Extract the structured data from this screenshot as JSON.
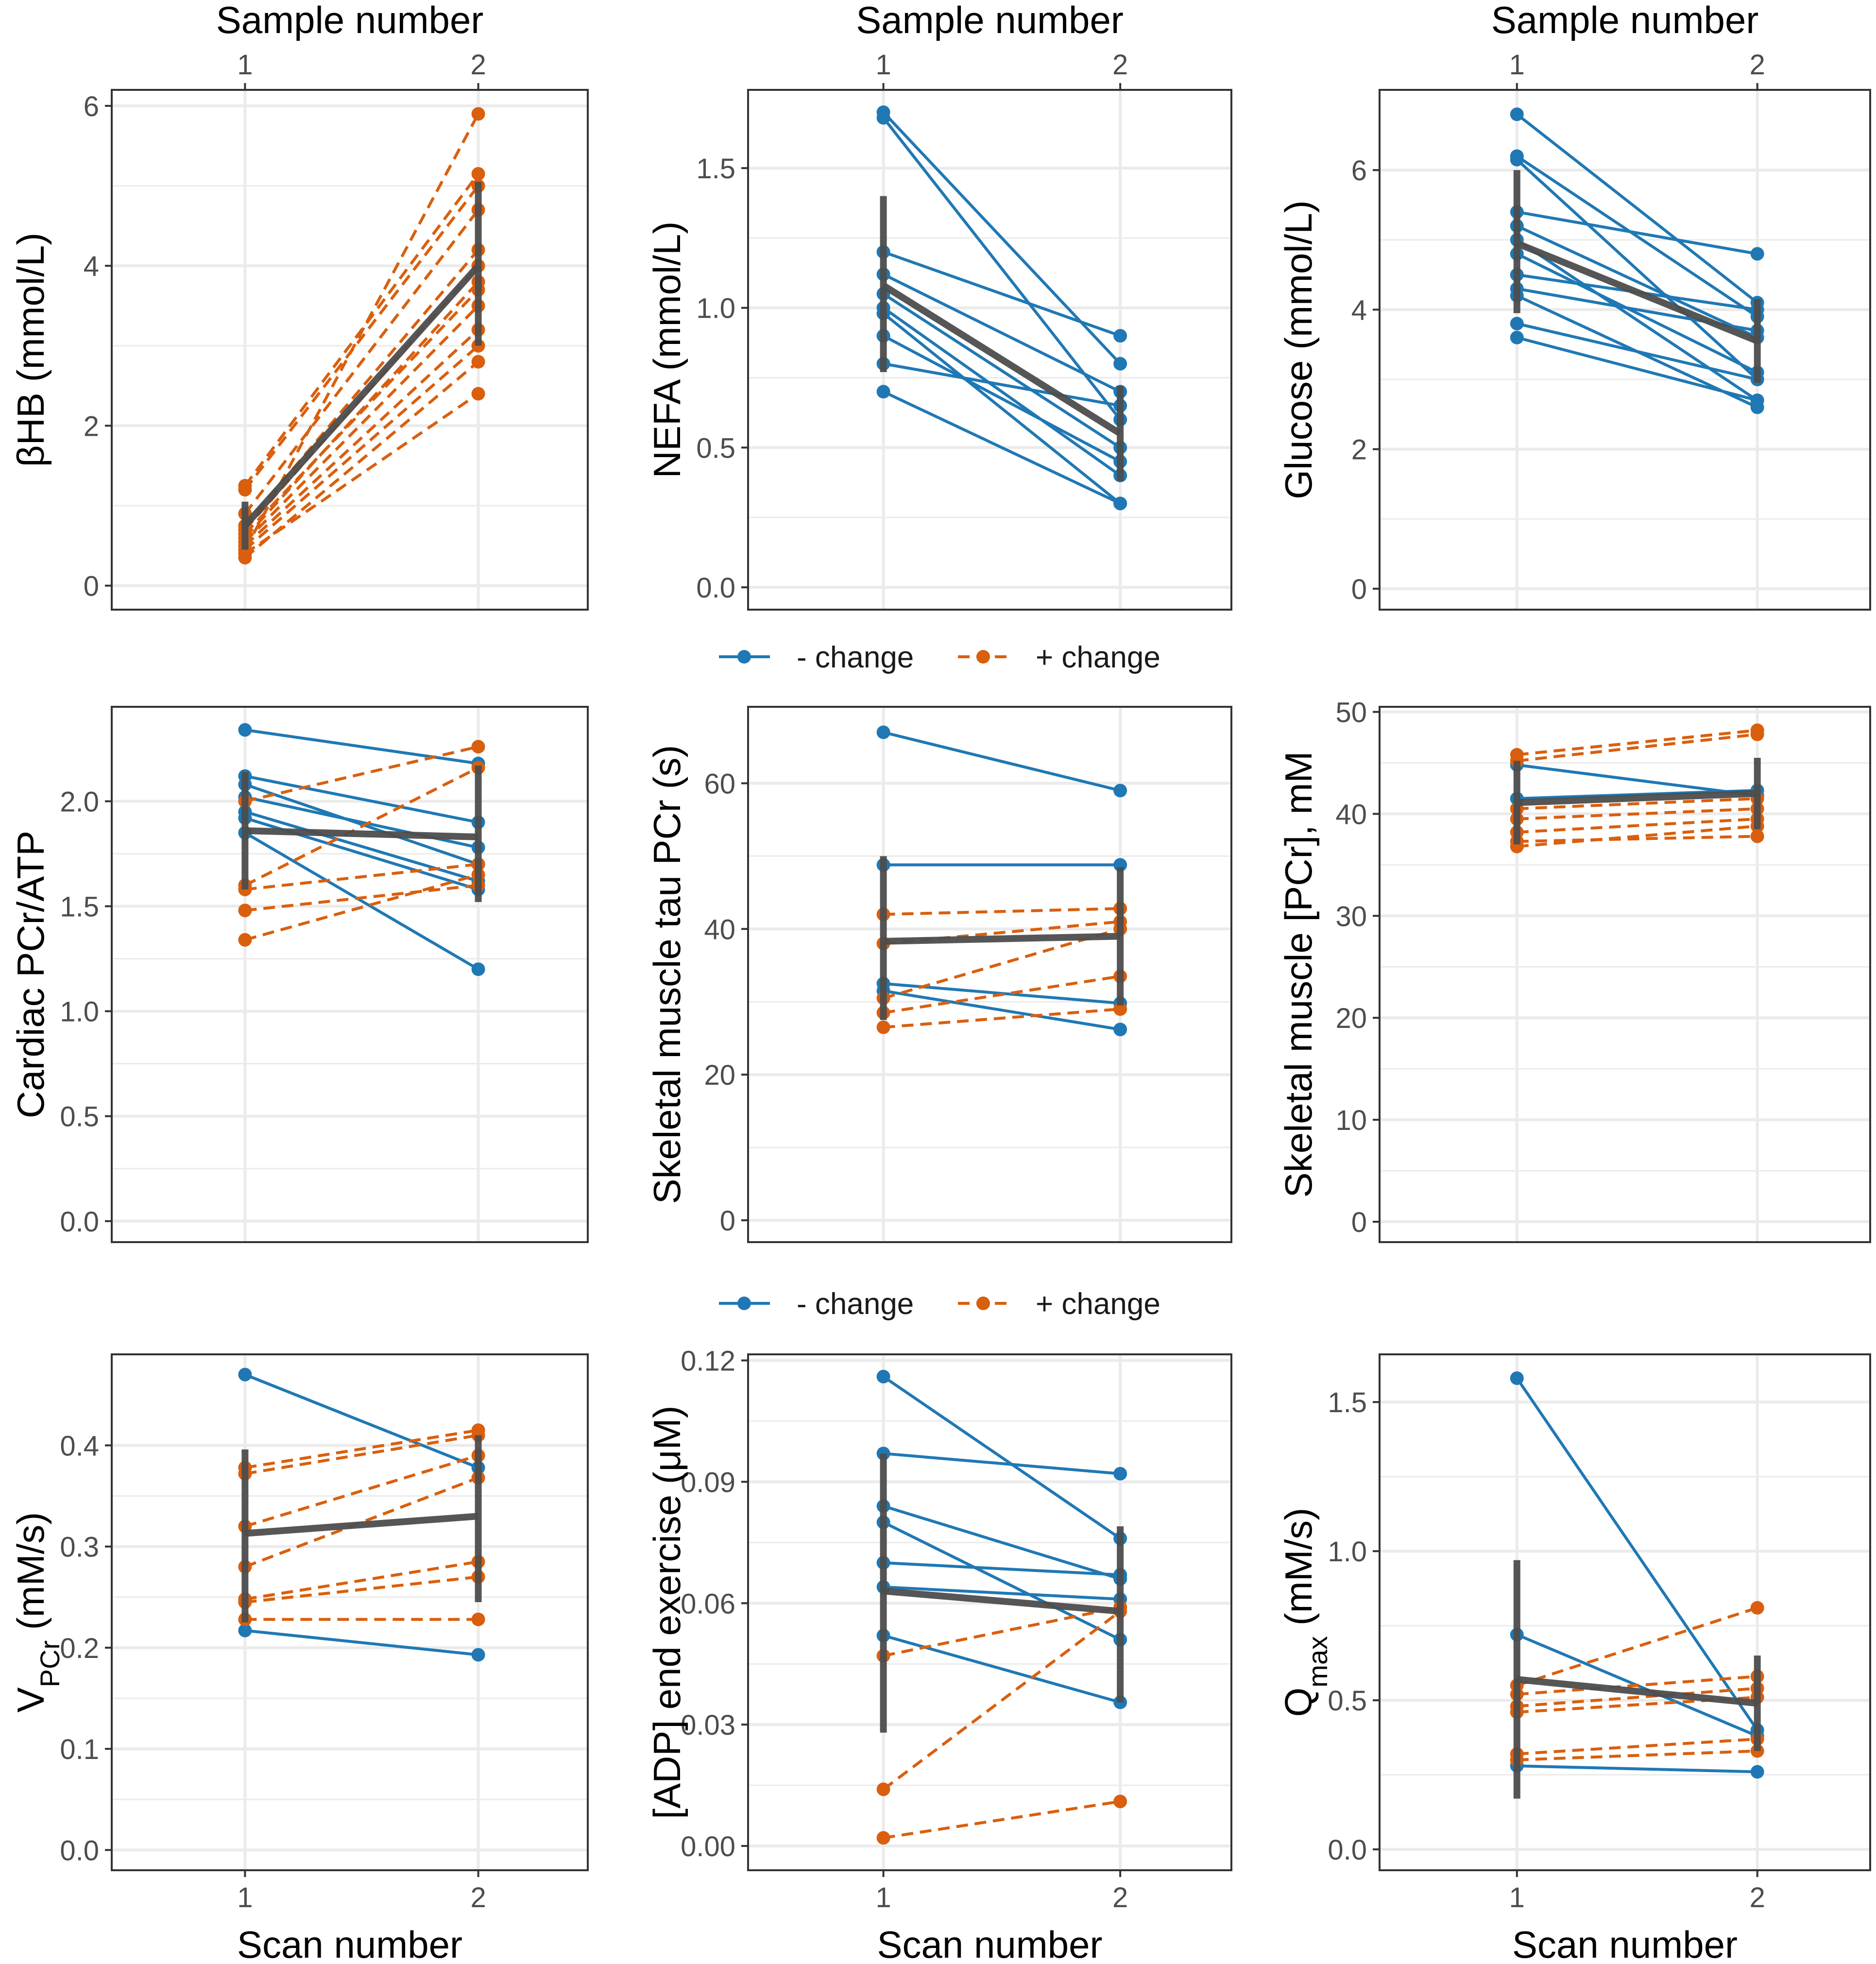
{
  "colors": {
    "decrease": "#1f78b4",
    "increase": "#d95f0e",
    "mean": "#4d4d4d",
    "grid": "#ebebeb",
    "panel_border": "#333333"
  },
  "legend": {
    "decrease_label": "- change",
    "increase_label": "+ change"
  },
  "chart_data": [
    {
      "type": "line",
      "row": 0,
      "col": 0,
      "top_axis_title": "Sample number",
      "xlabel": "",
      "x": [
        1,
        2
      ],
      "xtick_labels": [
        "1",
        "2"
      ],
      "ylabel": "βHB (mmol/L)",
      "ylim": [
        -0.3,
        6.2
      ],
      "yticks": [
        0,
        2,
        4,
        6
      ],
      "ytick_labels": [
        "0",
        "2",
        "4",
        "6"
      ],
      "series": [
        {
          "group": "increase",
          "values": [
            0.45,
            5.9
          ]
        },
        {
          "group": "increase",
          "values": [
            1.25,
            5.15
          ]
        },
        {
          "group": "increase",
          "values": [
            1.2,
            5.0
          ]
        },
        {
          "group": "increase",
          "values": [
            0.9,
            4.7
          ]
        },
        {
          "group": "increase",
          "values": [
            0.75,
            4.2
          ]
        },
        {
          "group": "increase",
          "values": [
            0.7,
            4.0
          ]
        },
        {
          "group": "increase",
          "values": [
            0.6,
            3.8
          ]
        },
        {
          "group": "increase",
          "values": [
            0.65,
            3.7
          ]
        },
        {
          "group": "increase",
          "values": [
            0.55,
            3.5
          ]
        },
        {
          "group": "increase",
          "values": [
            0.5,
            3.2
          ]
        },
        {
          "group": "increase",
          "values": [
            0.45,
            3.0
          ]
        },
        {
          "group": "increase",
          "values": [
            0.35,
            2.8
          ]
        },
        {
          "group": "increase",
          "values": [
            0.4,
            2.4
          ]
        }
      ],
      "mean": {
        "values": [
          0.75,
          4.0
        ],
        "err_low": [
          0.45,
          3.0
        ],
        "err_high": [
          1.05,
          5.05
        ]
      }
    },
    {
      "type": "line",
      "row": 0,
      "col": 1,
      "top_axis_title": "Sample number",
      "xlabel": "",
      "x": [
        1,
        2
      ],
      "xtick_labels": [
        "1",
        "2"
      ],
      "ylabel": "NEFA (mmol/L)",
      "ylim": [
        -0.08,
        1.78
      ],
      "yticks": [
        0,
        0.5,
        1.0,
        1.5
      ],
      "ytick_labels": [
        "0.0",
        "0.5",
        "1.0",
        "1.5"
      ],
      "series": [
        {
          "group": "decrease",
          "values": [
            1.7,
            0.8
          ]
        },
        {
          "group": "decrease",
          "values": [
            1.68,
            0.6
          ]
        },
        {
          "group": "decrease",
          "values": [
            1.2,
            0.9
          ]
        },
        {
          "group": "decrease",
          "values": [
            1.12,
            0.7
          ]
        },
        {
          "group": "decrease",
          "values": [
            1.05,
            0.5
          ]
        },
        {
          "group": "decrease",
          "values": [
            1.0,
            0.4
          ]
        },
        {
          "group": "decrease",
          "values": [
            0.98,
            0.3
          ]
        },
        {
          "group": "decrease",
          "values": [
            0.9,
            0.45
          ]
        },
        {
          "group": "decrease",
          "values": [
            0.8,
            0.65
          ]
        },
        {
          "group": "decrease",
          "values": [
            0.7,
            0.3
          ]
        }
      ],
      "mean": {
        "values": [
          1.08,
          0.55
        ],
        "err_low": [
          0.77,
          0.38
        ],
        "err_high": [
          1.4,
          0.72
        ]
      }
    },
    {
      "type": "line",
      "row": 0,
      "col": 2,
      "top_axis_title": "Sample number",
      "xlabel": "",
      "x": [
        1,
        2
      ],
      "xtick_labels": [
        "1",
        "2"
      ],
      "ylabel": "Glucose (mmol/L)",
      "ylim": [
        -0.3,
        7.15
      ],
      "yticks": [
        0,
        2,
        4,
        6
      ],
      "ytick_labels": [
        "0",
        "2",
        "4",
        "6"
      ],
      "series": [
        {
          "group": "decrease",
          "values": [
            6.8,
            4.1
          ]
        },
        {
          "group": "decrease",
          "values": [
            6.2,
            3.9
          ]
        },
        {
          "group": "decrease",
          "values": [
            6.15,
            3.0
          ]
        },
        {
          "group": "decrease",
          "values": [
            5.4,
            4.8
          ]
        },
        {
          "group": "decrease",
          "values": [
            5.2,
            3.6
          ]
        },
        {
          "group": "decrease",
          "values": [
            5.0,
            2.7
          ]
        },
        {
          "group": "decrease",
          "values": [
            4.8,
            3.1
          ]
        },
        {
          "group": "decrease",
          "values": [
            4.5,
            4.0
          ]
        },
        {
          "group": "decrease",
          "values": [
            4.3,
            3.7
          ]
        },
        {
          "group": "decrease",
          "values": [
            4.2,
            2.6
          ]
        },
        {
          "group": "decrease",
          "values": [
            3.8,
            3.0
          ]
        },
        {
          "group": "decrease",
          "values": [
            3.6,
            2.7
          ]
        }
      ],
      "mean": {
        "values": [
          4.95,
          3.55
        ],
        "err_low": [
          3.95,
          2.95
        ],
        "err_high": [
          6.0,
          4.15
        ]
      }
    },
    {
      "type": "line",
      "row": 1,
      "col": 0,
      "top_axis_title": "",
      "xlabel": "",
      "x": [
        1,
        2
      ],
      "xtick_labels": [],
      "ylabel": "Cardiac PCr/ATP",
      "ylim": [
        -0.1,
        2.45
      ],
      "yticks": [
        0,
        0.5,
        1.0,
        1.5,
        2.0
      ],
      "ytick_labels": [
        "0.0",
        "0.5",
        "1.0",
        "1.5",
        "2.0"
      ],
      "series": [
        {
          "group": "decrease",
          "values": [
            2.34,
            2.18
          ]
        },
        {
          "group": "decrease",
          "values": [
            2.12,
            1.9
          ]
        },
        {
          "group": "decrease",
          "values": [
            2.08,
            1.7
          ]
        },
        {
          "group": "decrease",
          "values": [
            2.02,
            1.78
          ]
        },
        {
          "group": "decrease",
          "values": [
            1.95,
            1.62
          ]
        },
        {
          "group": "decrease",
          "values": [
            1.92,
            1.58
          ]
        },
        {
          "group": "decrease",
          "values": [
            1.85,
            1.2
          ]
        },
        {
          "group": "increase",
          "values": [
            2.0,
            2.26
          ]
        },
        {
          "group": "increase",
          "values": [
            1.6,
            2.16
          ]
        },
        {
          "group": "increase",
          "values": [
            1.58,
            1.7
          ]
        },
        {
          "group": "increase",
          "values": [
            1.48,
            1.6
          ]
        },
        {
          "group": "increase",
          "values": [
            1.34,
            1.65
          ]
        }
      ],
      "mean": {
        "values": [
          1.86,
          1.83
        ],
        "err_low": [
          1.58,
          1.52
        ],
        "err_high": [
          2.14,
          2.17
        ]
      }
    },
    {
      "type": "line",
      "row": 1,
      "col": 1,
      "top_axis_title": "",
      "xlabel": "",
      "x": [
        1,
        2
      ],
      "xtick_labels": [],
      "ylabel": "Skeletal muscle tau PCr (s)",
      "ylim": [
        -3,
        70.5
      ],
      "yticks": [
        0,
        20,
        40,
        60
      ],
      "ytick_labels": [
        "0",
        "20",
        "40",
        "60"
      ],
      "series": [
        {
          "group": "decrease",
          "values": [
            67,
            59
          ]
        },
        {
          "group": "decrease",
          "values": [
            48.8,
            48.8
          ]
        },
        {
          "group": "decrease",
          "values": [
            32.5,
            29.8
          ]
        },
        {
          "group": "decrease",
          "values": [
            31.5,
            26.2
          ]
        },
        {
          "group": "increase",
          "values": [
            42,
            42.8
          ]
        },
        {
          "group": "increase",
          "values": [
            38,
            41
          ]
        },
        {
          "group": "increase",
          "values": [
            30.5,
            40
          ]
        },
        {
          "group": "increase",
          "values": [
            28.5,
            33.5
          ]
        },
        {
          "group": "increase",
          "values": [
            26.5,
            29
          ]
        }
      ],
      "mean": {
        "values": [
          38.3,
          39.0
        ],
        "err_low": [
          27.5,
          29.5
        ],
        "err_high": [
          50.0,
          48.5
        ]
      }
    },
    {
      "type": "line",
      "row": 1,
      "col": 2,
      "top_axis_title": "",
      "xlabel": "",
      "x": [
        1,
        2
      ],
      "xtick_labels": [],
      "ylabel": "Skeletal muscle [PCr], mM",
      "ylim": [
        -2,
        50.5
      ],
      "yticks": [
        0,
        10,
        20,
        30,
        40,
        50
      ],
      "ytick_labels": [
        "0",
        "10",
        "20",
        "30",
        "40",
        "50"
      ],
      "series": [
        {
          "group": "decrease",
          "values": [
            44.8,
            41.8
          ]
        },
        {
          "group": "decrease",
          "values": [
            41.5,
            42.3
          ]
        },
        {
          "group": "increase",
          "values": [
            45.8,
            48.2
          ]
        },
        {
          "group": "increase",
          "values": [
            45.2,
            47.8
          ]
        },
        {
          "group": "increase",
          "values": [
            40.5,
            41.5
          ]
        },
        {
          "group": "increase",
          "values": [
            39.5,
            40.5
          ]
        },
        {
          "group": "increase",
          "values": [
            38.2,
            39.5
          ]
        },
        {
          "group": "increase",
          "values": [
            37.3,
            37.8
          ]
        },
        {
          "group": "increase",
          "values": [
            36.8,
            38.8
          ]
        }
      ],
      "mean": {
        "values": [
          41.1,
          42.0
        ],
        "err_low": [
          37.0,
          38.5
        ],
        "err_high": [
          45.2,
          45.5
        ]
      }
    },
    {
      "type": "line",
      "row": 2,
      "col": 0,
      "top_axis_title": "",
      "xlabel": "Scan number",
      "x": [
        1,
        2
      ],
      "xtick_labels": [
        "1",
        "2"
      ],
      "ylabel": "VPCr (mM/s)",
      "ylabel_main": "V",
      "ylabel_sub": "PCr",
      "ylabel_rest": " (mM/s)",
      "ylim": [
        -0.02,
        0.49
      ],
      "yticks": [
        0,
        0.1,
        0.2,
        0.3,
        0.4
      ],
      "ytick_labels": [
        "0.0",
        "0.1",
        "0.2",
        "0.3",
        "0.4"
      ],
      "series": [
        {
          "group": "decrease",
          "values": [
            0.47,
            0.378
          ]
        },
        {
          "group": "decrease",
          "values": [
            0.217,
            0.193
          ]
        },
        {
          "group": "increase",
          "values": [
            0.378,
            0.415
          ]
        },
        {
          "group": "increase",
          "values": [
            0.372,
            0.41
          ]
        },
        {
          "group": "increase",
          "values": [
            0.32,
            0.39
          ]
        },
        {
          "group": "increase",
          "values": [
            0.28,
            0.368
          ]
        },
        {
          "group": "increase",
          "values": [
            0.248,
            0.285
          ]
        },
        {
          "group": "increase",
          "values": [
            0.245,
            0.27
          ]
        },
        {
          "group": "increase",
          "values": [
            0.228,
            0.228
          ]
        }
      ],
      "mean": {
        "values": [
          0.313,
          0.33
        ],
        "err_low": [
          0.225,
          0.245
        ],
        "err_high": [
          0.396,
          0.41
        ]
      }
    },
    {
      "type": "line",
      "row": 2,
      "col": 1,
      "top_axis_title": "",
      "xlabel": "Scan number",
      "x": [
        1,
        2
      ],
      "xtick_labels": [
        "1",
        "2"
      ],
      "ylabel": "[ADP] end exercise (μM)",
      "ylim": [
        -0.006,
        0.1215
      ],
      "yticks": [
        0,
        0.03,
        0.06,
        0.09,
        0.12
      ],
      "ytick_labels": [
        "0.00",
        "0.03",
        "0.06",
        "0.09",
        "0.12"
      ],
      "series": [
        {
          "group": "decrease",
          "values": [
            0.116,
            0.076
          ]
        },
        {
          "group": "decrease",
          "values": [
            0.097,
            0.092
          ]
        },
        {
          "group": "decrease",
          "values": [
            0.084,
            0.066
          ]
        },
        {
          "group": "decrease",
          "values": [
            0.08,
            0.051
          ]
        },
        {
          "group": "decrease",
          "values": [
            0.07,
            0.067
          ]
        },
        {
          "group": "decrease",
          "values": [
            0.064,
            0.061
          ]
        },
        {
          "group": "decrease",
          "values": [
            0.052,
            0.0355
          ]
        },
        {
          "group": "increase",
          "values": [
            0.047,
            0.059
          ]
        },
        {
          "group": "increase",
          "values": [
            0.014,
            0.058
          ]
        },
        {
          "group": "increase",
          "values": [
            0.002,
            0.011
          ]
        }
      ],
      "mean": {
        "values": [
          0.063,
          0.058
        ],
        "err_low": [
          0.028,
          0.0355
        ],
        "err_high": [
          0.097,
          0.079
        ]
      }
    },
    {
      "type": "line",
      "row": 2,
      "col": 2,
      "top_axis_title": "",
      "xlabel": "Scan number",
      "x": [
        1,
        2
      ],
      "xtick_labels": [
        "1",
        "2"
      ],
      "ylabel": "Qmax (mM/s)",
      "ylabel_main": "Q",
      "ylabel_sub": "max",
      "ylabel_rest": " (mM/s)",
      "ylim": [
        -0.07,
        1.66
      ],
      "yticks": [
        0,
        0.5,
        1.0,
        1.5
      ],
      "ytick_labels": [
        "0.0",
        "0.5",
        "1.0",
        "1.5"
      ],
      "series": [
        {
          "group": "decrease",
          "values": [
            1.58,
            0.4
          ]
        },
        {
          "group": "decrease",
          "values": [
            0.72,
            0.38
          ]
        },
        {
          "group": "decrease",
          "values": [
            0.28,
            0.26
          ]
        },
        {
          "group": "increase",
          "values": [
            0.55,
            0.81
          ]
        },
        {
          "group": "increase",
          "values": [
            0.52,
            0.58
          ]
        },
        {
          "group": "increase",
          "values": [
            0.48,
            0.54
          ]
        },
        {
          "group": "increase",
          "values": [
            0.46,
            0.51
          ]
        },
        {
          "group": "increase",
          "values": [
            0.32,
            0.37
          ]
        },
        {
          "group": "increase",
          "values": [
            0.3,
            0.33
          ]
        }
      ],
      "mean": {
        "values": [
          0.57,
          0.49
        ],
        "err_low": [
          0.17,
          0.33
        ],
        "err_high": [
          0.97,
          0.65
        ]
      }
    }
  ]
}
